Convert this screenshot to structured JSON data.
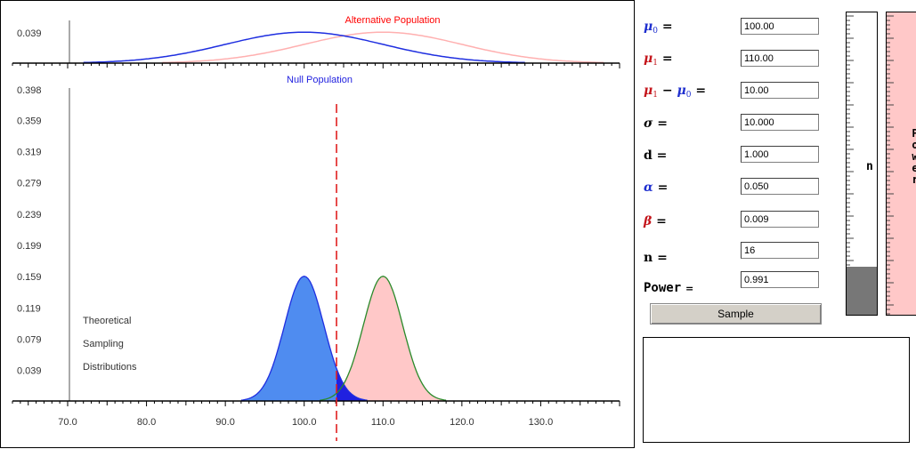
{
  "plot": {
    "alt_title": "Alternative Population",
    "null_title": "Null Population",
    "alt_color": "#ff0000",
    "null_color": "#1f1fdf",
    "annotation_lines": [
      "Theoretical",
      "Sampling",
      "Distributions"
    ],
    "colors": {
      "null_population_curve": "#1f2fe0",
      "alt_population_curve": "#ffb0b0",
      "null_fill": "#4f8cf0",
      "null_tail_fill": "#2020e0",
      "alt_fill": "#ffc8c8",
      "alt_curve": "#2a8a2a",
      "critical_line": "#e02020"
    }
  },
  "chart_data": [
    {
      "type": "line",
      "panel": "population distributions (top)",
      "series": [
        {
          "name": "Null Population",
          "mean": 100,
          "sd": 10
        },
        {
          "name": "Alternative Population",
          "mean": 110,
          "sd": 10
        }
      ],
      "xlim": [
        63,
        140
      ],
      "ylim": [
        0,
        0.039
      ],
      "yticks": [
        "0.039"
      ]
    },
    {
      "type": "area",
      "panel": "theoretical sampling distributions (bottom)",
      "series": [
        {
          "name": "null sampling distribution",
          "mean": 100,
          "se": 2.5
        },
        {
          "name": "alternative sampling distribution",
          "mean": 110,
          "se": 2.5
        }
      ],
      "critical_value": 104.1,
      "xlim": [
        63,
        140
      ],
      "ylim": [
        0,
        0.398
      ],
      "xticks": [
        "70.0",
        "80.0",
        "90.0",
        "100.0",
        "110.0",
        "120.0",
        "130.0"
      ],
      "xtick_values": [
        70,
        80,
        90,
        100,
        110,
        120,
        130
      ],
      "yticks": [
        "0.398",
        "0.359",
        "0.319",
        "0.279",
        "0.239",
        "0.199",
        "0.159",
        "0.119",
        "0.079",
        "0.039"
      ],
      "ytick_values": [
        0.398,
        0.359,
        0.319,
        0.279,
        0.239,
        0.199,
        0.159,
        0.119,
        0.079,
        0.039
      ]
    }
  ],
  "params": {
    "mu0": "100.00",
    "mu1": "110.00",
    "diff": "10.00",
    "sigma": "10.000",
    "d": "1.000",
    "alpha": "0.050",
    "beta": "0.009",
    "n": "16",
    "power": "0.991"
  },
  "labels": {
    "mu": "μ",
    "mu0_sub": "0",
    "mu1_sub": "1",
    "minus": "−",
    "equals": "=",
    "sigma": "σ",
    "d": "d",
    "alpha": "α",
    "beta": "β",
    "n": "n",
    "power": "Power"
  },
  "sample_button": "Sample",
  "n_bar": {
    "label": "n",
    "fraction": 0.16
  },
  "power_bar": {
    "label_letters": [
      "P",
      "o",
      "w",
      "e",
      "r"
    ],
    "fraction": 0.991
  }
}
